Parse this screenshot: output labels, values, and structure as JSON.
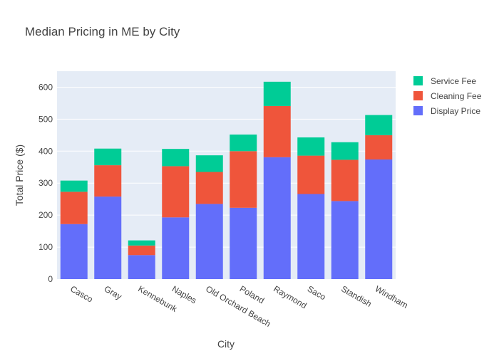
{
  "chart_data": {
    "type": "bar",
    "barmode": "stack",
    "title": "Median Pricing in ME by City",
    "xlabel": "City",
    "ylabel": "Total Price ($)",
    "ylim": [
      0,
      650
    ],
    "yticks": [
      0,
      100,
      200,
      300,
      400,
      500,
      600
    ],
    "grid": true,
    "legend_position": "top-right",
    "categories": [
      "Casco",
      "Gray",
      "Kennebunk",
      "Naples",
      "Old Orchard Beach",
      "Poland",
      "Raymond",
      "Saco",
      "Standish",
      "Windham"
    ],
    "series": [
      {
        "name": "Display Price",
        "color": "#636efa",
        "values": [
          172,
          258,
          75,
          193,
          235,
          223,
          381,
          266,
          244,
          374
        ]
      },
      {
        "name": "Cleaning Fee",
        "color": "#ef553b",
        "values": [
          101,
          98,
          30,
          160,
          100,
          177,
          160,
          120,
          129,
          76
        ]
      },
      {
        "name": "Service Fee",
        "color": "#00cc96",
        "values": [
          35,
          52,
          16,
          54,
          52,
          52,
          76,
          57,
          55,
          63
        ]
      }
    ]
  }
}
